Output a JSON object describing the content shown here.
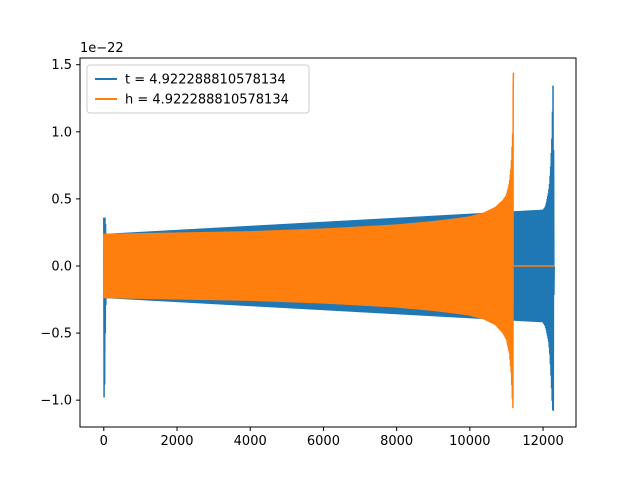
{
  "chart_data": {
    "type": "line",
    "title": "",
    "xlabel": "",
    "ylabel": "",
    "y_offset_label": "1e−22",
    "xlim": [
      -650,
      12900
    ],
    "ylim": [
      -1.2,
      1.55
    ],
    "x_ticks": [
      0,
      2000,
      4000,
      6000,
      8000,
      10000,
      12000
    ],
    "x_tick_labels": [
      "0",
      "2000",
      "4000",
      "6000",
      "8000",
      "10000",
      "12000"
    ],
    "y_ticks": [
      -1.0,
      -0.5,
      0.0,
      0.5,
      1.0,
      1.5
    ],
    "y_tick_labels": [
      "−1.0",
      "−0.5",
      "0.0",
      "0.5",
      "1.0",
      "1.5"
    ],
    "grid": false,
    "legend_placement": "upper-left",
    "series": [
      {
        "name": "t = 4.922288810578134",
        "color": "#1f77b4",
        "envelope": {
          "x": [
            0,
            20,
            40,
            60,
            12000,
            12060,
            12090,
            12150,
            12180,
            12210,
            12240,
            12260,
            12280,
            12300,
            12310
          ],
          "upper": [
            0.36,
            0.36,
            0.36,
            0.24,
            0.42,
            0.44,
            0.47,
            0.55,
            0.62,
            0.75,
            0.95,
            1.2,
            1.44,
            0.0,
            0.0
          ],
          "lower": [
            -0.98,
            -0.98,
            -0.5,
            -0.24,
            -0.42,
            -0.45,
            -0.48,
            -0.56,
            -0.64,
            -0.78,
            -0.96,
            -1.07,
            -1.08,
            0.0,
            0.0
          ]
        },
        "tail_x_end": 12310
      },
      {
        "name": "h = 4.922288810578134",
        "color": "#ff7f0e",
        "envelope": {
          "x": [
            0,
            1000,
            2000,
            3000,
            4000,
            5000,
            6000,
            7000,
            8000,
            9000,
            9600,
            10000,
            10400,
            10700,
            10900,
            11000,
            11080,
            11130,
            11170,
            11190
          ],
          "upper": [
            0.24,
            0.245,
            0.25,
            0.255,
            0.26,
            0.27,
            0.28,
            0.295,
            0.31,
            0.335,
            0.355,
            0.37,
            0.4,
            0.44,
            0.49,
            0.53,
            0.62,
            0.75,
            1.0,
            1.44
          ],
          "lower": [
            -0.24,
            -0.245,
            -0.25,
            -0.255,
            -0.26,
            -0.27,
            -0.28,
            -0.295,
            -0.31,
            -0.335,
            -0.355,
            -0.37,
            -0.4,
            -0.44,
            -0.5,
            -0.55,
            -0.65,
            -0.8,
            -1.05,
            -1.08
          ]
        },
        "tail_x_end": 12310
      }
    ]
  }
}
